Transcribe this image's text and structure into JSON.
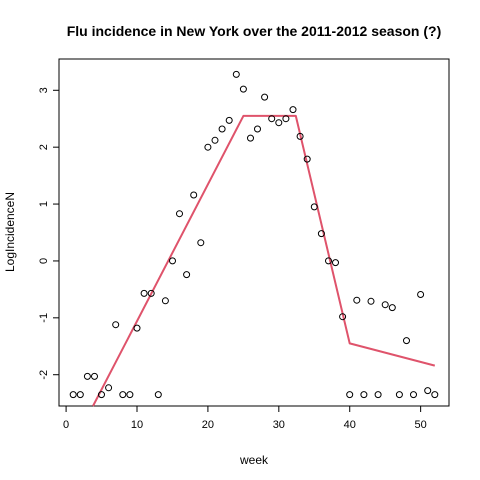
{
  "chart_data": {
    "type": "scatter",
    "title": "Flu incidence in New York over the 2011-2012 season (?)",
    "xlabel": "week",
    "ylabel": "LogIncidenceN",
    "xlim": [
      -1,
      54
    ],
    "ylim": [
      -2.55,
      3.55
    ],
    "x_ticks": [
      0,
      10,
      20,
      30,
      40,
      50
    ],
    "y_ticks": [
      -2,
      -1,
      0,
      1,
      2,
      3
    ],
    "grid": false,
    "series": [
      {
        "kind": "points",
        "x": [
          1,
          2,
          3,
          4,
          5,
          6,
          7,
          8,
          9,
          10,
          11,
          12,
          13,
          14,
          15,
          16,
          17,
          18,
          19,
          20,
          21,
          22,
          23,
          24,
          25,
          26,
          27,
          28,
          29,
          30,
          31,
          32,
          33,
          34,
          35,
          36,
          37,
          38,
          39,
          40,
          41,
          42,
          43,
          44,
          45,
          46,
          47,
          48,
          49,
          50,
          51,
          52
        ],
        "y": [
          -2.35,
          -2.35,
          -2.03,
          -2.03,
          -2.35,
          -2.23,
          -1.12,
          -2.35,
          -2.35,
          -1.18,
          -0.57,
          -0.57,
          -2.35,
          -0.7,
          0.0,
          0.83,
          -0.24,
          1.16,
          0.32,
          2.0,
          2.12,
          2.32,
          2.47,
          3.28,
          3.02,
          2.16,
          2.32,
          2.88,
          2.5,
          2.43,
          2.5,
          2.66,
          2.19,
          1.79,
          0.95,
          0.48,
          0.0,
          -0.03,
          -0.98,
          -2.35,
          -0.69,
          -2.35,
          -0.71,
          -2.35,
          -0.77,
          -0.82,
          -2.35,
          -1.4,
          -2.35,
          -0.59,
          -2.28,
          -2.35
        ]
      },
      {
        "kind": "fit-line",
        "color": "#DF536B",
        "x": [
          3.8,
          25,
          32.4,
          40,
          52
        ],
        "y": [
          -2.55,
          2.55,
          2.55,
          -1.45,
          -1.84
        ]
      }
    ]
  }
}
